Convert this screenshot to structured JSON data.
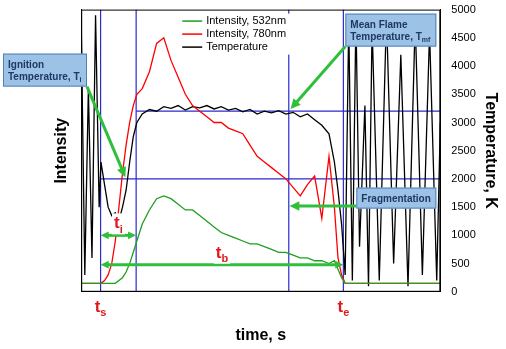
{
  "chart_data": {
    "type": "line",
    "x_label": "time, s",
    "y_label": "Temperature, K",
    "y2_label": "Intensity",
    "x": [
      0,
      1,
      2,
      3,
      4,
      5,
      5.5,
      6.5,
      7.5,
      8.5,
      9.5,
      10.5,
      11.5,
      12.5,
      13.5,
      14.5,
      15.5,
      17,
      19,
      21,
      23,
      25,
      27,
      29,
      31,
      33,
      35,
      37,
      39,
      41,
      43,
      45,
      47,
      49,
      51,
      53,
      55,
      57,
      59,
      61,
      63,
      65,
      67,
      69,
      70.5,
      71.5,
      72.5,
      73.5,
      74.5,
      75.5,
      76.5,
      77.5,
      79,
      80,
      81,
      83,
      85,
      87,
      89,
      91,
      93,
      95,
      97,
      99,
      100
    ],
    "series": [
      {
        "name": "Intensity, 532nm",
        "color": "#1f9e1f",
        "axis": "y2",
        "values": [
          3,
          3,
          3,
          3,
          3,
          3,
          3,
          3,
          3,
          3,
          3,
          4,
          5,
          7,
          10,
          14,
          18,
          24,
          29,
          33,
          34,
          33,
          31,
          29,
          29,
          27,
          25,
          23,
          21,
          20,
          19,
          18,
          17,
          17,
          16,
          15,
          14,
          14,
          13,
          12,
          12,
          11,
          11,
          10,
          11,
          8,
          5,
          3,
          3,
          3,
          3,
          3,
          3,
          3,
          3,
          3,
          3,
          3,
          3,
          3,
          3,
          3,
          3,
          3,
          3
        ]
      },
      {
        "name": "Intensity, 780nm",
        "color": "#ff0000",
        "axis": "y2",
        "values": [
          3,
          3,
          3,
          3,
          3,
          3,
          3,
          4,
          6,
          10,
          18,
          30,
          42,
          52,
          60,
          66,
          70,
          72,
          78,
          88,
          90,
          82,
          76,
          70,
          66,
          64,
          62,
          60,
          60,
          58,
          57,
          56,
          52,
          48,
          46,
          44,
          42,
          40,
          37,
          34,
          38,
          41,
          26,
          48,
          30,
          12,
          6,
          3,
          3,
          3,
          3,
          3,
          3,
          3,
          3,
          3,
          3,
          3,
          3,
          3,
          3,
          3,
          3,
          3,
          3
        ]
      },
      {
        "name": "Temperature",
        "color": "#000000",
        "axis": "y",
        "values": [
          4800,
          300,
          3600,
          600,
          4900,
          1500,
          2300,
          1900,
          1500,
          1350,
          1400,
          1250,
          1500,
          1800,
          2300,
          2750,
          3000,
          3150,
          3230,
          3200,
          3280,
          3250,
          3300,
          3220,
          3280,
          3260,
          3300,
          3240,
          3280,
          3220,
          3250,
          3190,
          3230,
          3150,
          3200,
          3170,
          3210,
          3150,
          3180,
          3100,
          3150,
          3050,
          2950,
          2800,
          2300,
          1800,
          1200,
          300,
          4800,
          200,
          4900,
          800,
          3300,
          100,
          4700,
          200,
          4900,
          500,
          4200,
          100,
          4800,
          300,
          4600,
          200,
          3000
        ]
      }
    ],
    "xlim": [
      0,
      100
    ],
    "ylim": [
      0,
      5000
    ],
    "yticks": [
      0,
      500,
      1000,
      1500,
      2000,
      2500,
      3000,
      3500,
      4000,
      4500,
      5000
    ],
    "y2lim": [
      0,
      100
    ],
    "tick_labels": "y",
    "grid": false,
    "legend": "top",
    "vertical_lines": [
      5.4,
      15.3,
      57.8,
      73
    ],
    "horizontal_lines": [
      {
        "value": 2000,
        "from": 5.4
      },
      {
        "value": 3200,
        "from": 15.3
      }
    ],
    "intervals": [
      {
        "label": "t",
        "subscript": "i",
        "from": 5.4,
        "to": 15.3,
        "y": 1000
      },
      {
        "label": "t",
        "subscript": "b",
        "from": 5.4,
        "to": 73,
        "y": 480
      }
    ],
    "x_markers": [
      {
        "label": "t",
        "subscript": "s",
        "x": 5.4
      },
      {
        "label": "t",
        "subscript": "e",
        "x": 73
      }
    ],
    "callouts": [
      {
        "text": [
          "Ignition",
          "Temperature, T"
        ],
        "subscript": "i",
        "target": [
          12.3,
          2030
        ]
      },
      {
        "text": [
          "Mean Flame",
          "Temperature, T"
        ],
        "subscript": "mf",
        "target": [
          58.3,
          3240
        ]
      },
      {
        "text": [
          "Fragmentation"
        ],
        "target": [
          58,
          1520
        ]
      }
    ]
  }
}
